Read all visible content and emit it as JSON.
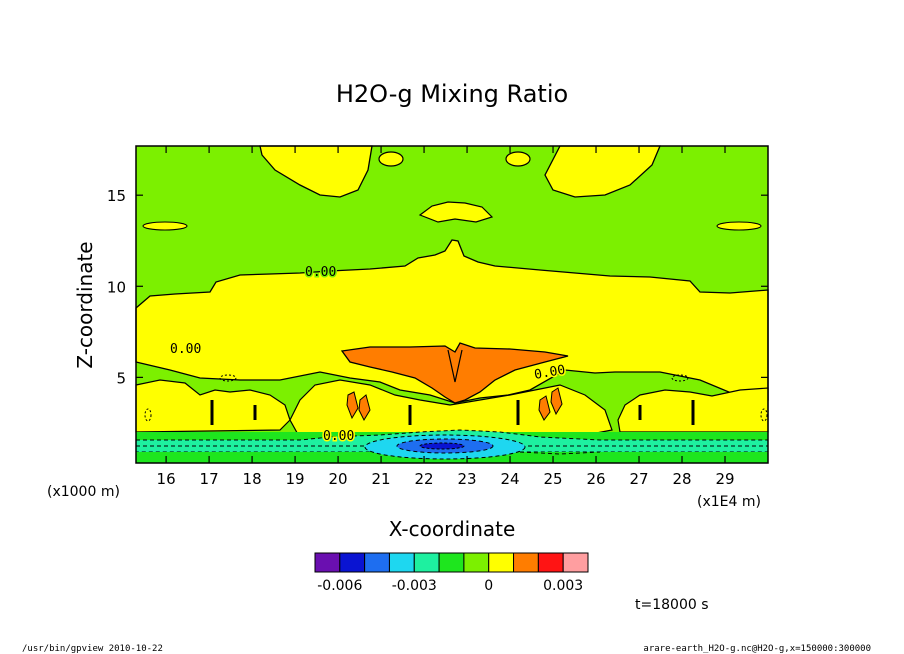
{
  "chart_data": {
    "type": "heatmap",
    "title": "H2O-g Mixing Ratio",
    "xlabel": "X-coordinate",
    "ylabel": "Z-coordinate",
    "x_unit_label": "(x1E4 m)",
    "y_unit_label": "(x1000 m)",
    "x_ticks": [
      "16",
      "17",
      "18",
      "19",
      "20",
      "21",
      "22",
      "23",
      "24",
      "25",
      "26",
      "27",
      "28",
      "29"
    ],
    "y_ticks": [
      "5",
      "10",
      "15"
    ],
    "xlim": [
      15.3,
      30.0
    ],
    "ylim": [
      0.3,
      17.7
    ],
    "contour_labels": [
      "0.00",
      "0.00",
      "0.00",
      "0.00"
    ],
    "colorbar": {
      "colors": [
        "#6a0fb0",
        "#0a14d2",
        "#1e6ef0",
        "#1ed7f0",
        "#1ef0a0",
        "#1ee61e",
        "#7cf000",
        "#ffff00",
        "#ff7d00",
        "#ff1414",
        "#ff9ea0"
      ],
      "tick_labels": [
        "-0.006",
        "-0.003",
        "0",
        "0.003"
      ],
      "tick_values": [
        -0.006,
        -0.003,
        0,
        0.003
      ]
    },
    "regions": [
      {
        "name": "upper yellow band",
        "value_range": [
          0.0,
          0.0005
        ],
        "z_range": [
          6.5,
          12
        ]
      },
      {
        "name": "orange core",
        "value_range": [
          0.0005,
          0.001
        ],
        "center_x": 22.6,
        "z_range": [
          3.5,
          6.5
        ]
      },
      {
        "name": "near-surface minimum",
        "value_range": [
          -0.006,
          -0.004
        ],
        "center_x": 22.5,
        "z_range": [
          0.5,
          1.5
        ]
      }
    ]
  },
  "annotations": {
    "time": "t=18000 s",
    "footer_left": "/usr/bin/gpview   2010-10-22",
    "footer_right": "arare-earth_H2O-g.nc@H2O-g,x=150000:300000"
  }
}
